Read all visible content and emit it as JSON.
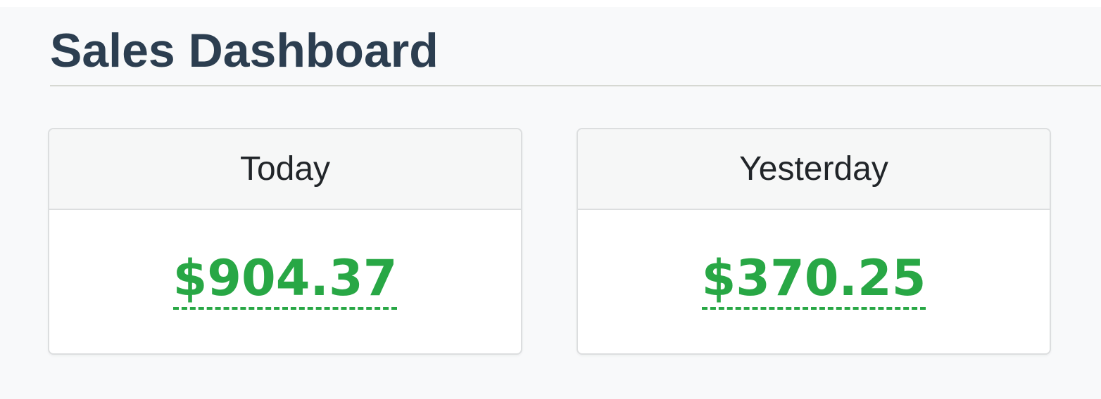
{
  "page": {
    "title": "Sales Dashboard"
  },
  "cards": [
    {
      "label": "Today",
      "amount": "$904.37"
    },
    {
      "label": "Yesterday",
      "amount": "$370.25"
    }
  ],
  "colors": {
    "page_background": "#f8f9fa",
    "title_text": "#2c3e50",
    "amount_green": "#28a745",
    "card_border": "#dcdedf",
    "card_header_background": "#f6f7f7"
  }
}
